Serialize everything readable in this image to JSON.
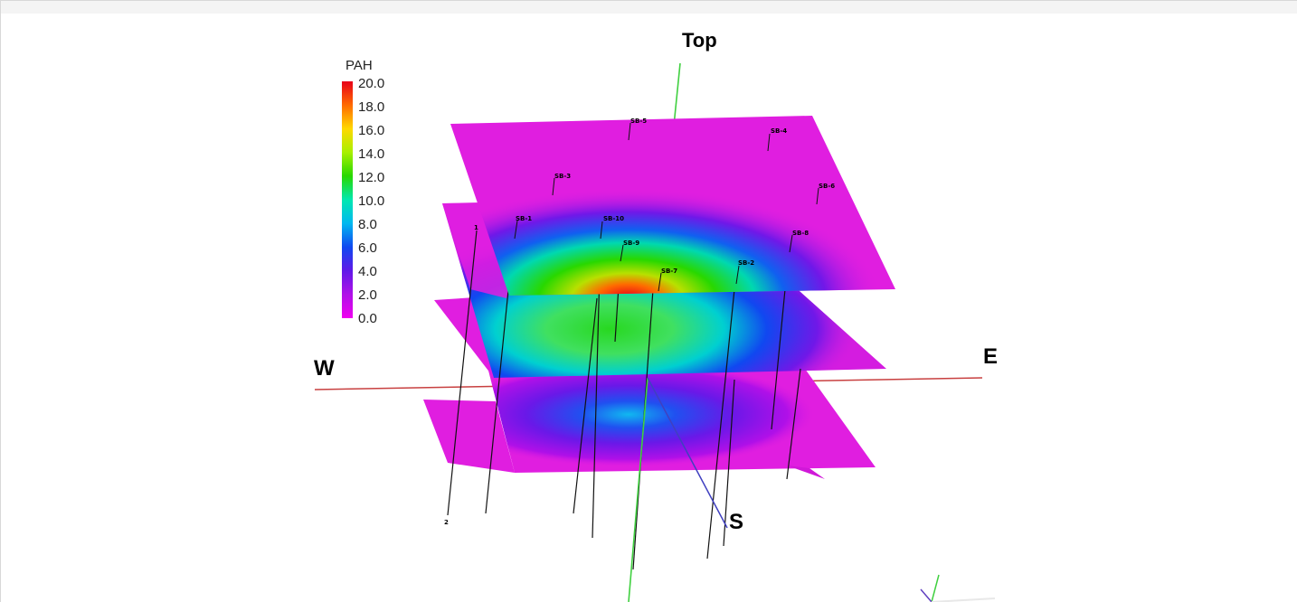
{
  "axes": {
    "top": "Top",
    "west": "W",
    "east": "E",
    "south": "S"
  },
  "legend": {
    "title": "PAH",
    "ticks": [
      "20.0",
      "18.0",
      "16.0",
      "14.0",
      "12.0",
      "10.0",
      "8.0",
      "6.0",
      "4.0",
      "2.0",
      "0.0"
    ],
    "colors": [
      "#e8001a",
      "#ff6a00",
      "#ffd800",
      "#c8f000",
      "#28d800",
      "#00e8d0",
      "#00a8f0",
      "#1040f0",
      "#7018e8",
      "#c010e8",
      "#f000f0"
    ]
  },
  "wells": {
    "surface_top": [
      "SB-5",
      "SB-4",
      "SB-3",
      "SB-6",
      "SB-1",
      "SB-10",
      "SB-9",
      "SB-8",
      "SB-7",
      "SB-2"
    ],
    "depth_markers": [
      "1",
      "2"
    ]
  },
  "colors": {
    "west_east_axis": "#c84040",
    "top_axis": "#40d040",
    "south_axis": "#4040c0",
    "magenta": "#e01ee0"
  }
}
